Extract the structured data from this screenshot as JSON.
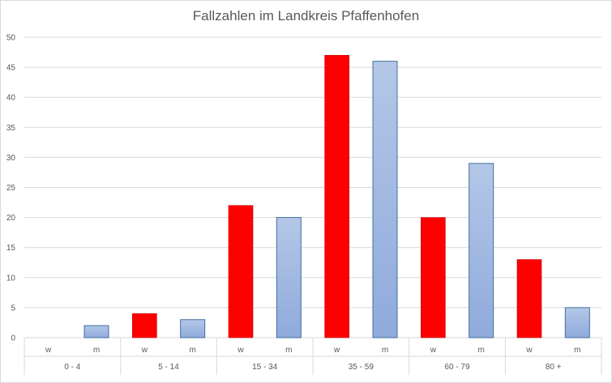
{
  "chart_data": {
    "type": "bar",
    "title": "Fallzahlen im Landkreis Pfaffenhofen",
    "xlabel": "",
    "ylabel": "",
    "ylim": [
      0,
      50
    ],
    "yticks": [
      0,
      5,
      10,
      15,
      20,
      25,
      30,
      35,
      40,
      45,
      50
    ],
    "grid": true,
    "groups": [
      {
        "label": "0 - 4",
        "bars": [
          {
            "sub": "w",
            "value": 0
          },
          {
            "sub": "m",
            "value": 2
          }
        ]
      },
      {
        "label": "5 - 14",
        "bars": [
          {
            "sub": "w",
            "value": 4
          },
          {
            "sub": "m",
            "value": 3
          }
        ]
      },
      {
        "label": "15 - 34",
        "bars": [
          {
            "sub": "w",
            "value": 22
          },
          {
            "sub": "m",
            "value": 20
          }
        ]
      },
      {
        "label": "35 - 59",
        "bars": [
          {
            "sub": "w",
            "value": 47
          },
          {
            "sub": "m",
            "value": 46
          }
        ]
      },
      {
        "label": "60 - 79",
        "bars": [
          {
            "sub": "w",
            "value": 20
          },
          {
            "sub": "m",
            "value": 29
          }
        ]
      },
      {
        "label": "80 +",
        "bars": [
          {
            "sub": "w",
            "value": 13
          },
          {
            "sub": "m",
            "value": 5
          }
        ]
      }
    ],
    "colors": {
      "w": "#ff0000",
      "m_top": "#b4c7e7",
      "m_bottom": "#8faadc",
      "m_border": "#41719c"
    }
  }
}
